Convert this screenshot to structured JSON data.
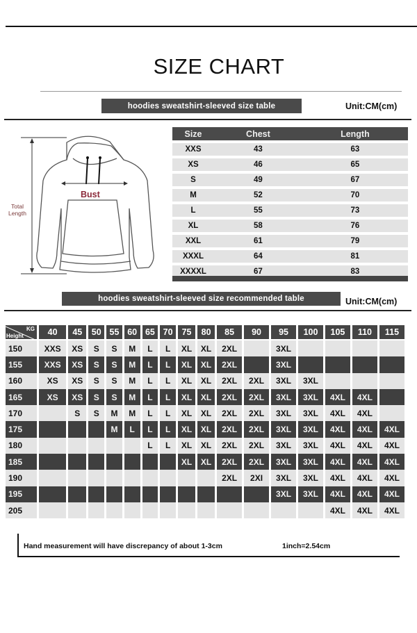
{
  "title": "SIZE CHART",
  "size_table": {
    "banner": "hoodies sweatshirt-sleeved size  table",
    "unit": "Unit:CM(cm)",
    "headers": [
      "Size",
      "Chest",
      "Length"
    ],
    "rows": [
      [
        "XXS",
        "43",
        "63"
      ],
      [
        "XS",
        "46",
        "65"
      ],
      [
        "S",
        "49",
        "67"
      ],
      [
        "M",
        "52",
        "70"
      ],
      [
        "L",
        "55",
        "73"
      ],
      [
        "XL",
        "58",
        "76"
      ],
      [
        "XXL",
        "61",
        "79"
      ],
      [
        "XXXL",
        "64",
        "81"
      ],
      [
        "XXXXL",
        "67",
        "83"
      ]
    ]
  },
  "diagram": {
    "bust_label": "Bust",
    "length_label_1": "Total",
    "length_label_2": "Length",
    "bust_color": "#8b2a3a"
  },
  "recommend_table": {
    "banner": "hoodies sweatshirt-sleeved size recommended table",
    "unit": "Unit:CM(cm)",
    "corner_kg": "KG",
    "corner_height": "Height",
    "weights": [
      "40",
      "45",
      "50",
      "55",
      "60",
      "65",
      "70",
      "75",
      "80",
      "85",
      "90",
      "95",
      "100",
      "105",
      "110",
      "115"
    ],
    "rows": [
      {
        "height": "150",
        "sizes": [
          "XXS",
          "XS",
          "S",
          "S",
          "M",
          "L",
          "L",
          "XL",
          "XL",
          "2XL",
          "",
          "3XL",
          "",
          "",
          "",
          ""
        ]
      },
      {
        "height": "155",
        "sizes": [
          "XXS",
          "XS",
          "S",
          "S",
          "M",
          "L",
          "L",
          "XL",
          "XL",
          "2XL",
          "",
          "3XL",
          "",
          "",
          "",
          ""
        ]
      },
      {
        "height": "160",
        "sizes": [
          "XS",
          "XS",
          "S",
          "S",
          "M",
          "L",
          "L",
          "XL",
          "XL",
          "2XL",
          "2XL",
          "3XL",
          "3XL",
          "",
          "",
          ""
        ]
      },
      {
        "height": "165",
        "sizes": [
          "XS",
          "XS",
          "S",
          "S",
          "M",
          "L",
          "L",
          "XL",
          "XL",
          "2XL",
          "2XL",
          "3XL",
          "3XL",
          "4XL",
          "4XL",
          ""
        ]
      },
      {
        "height": "170",
        "sizes": [
          "",
          "S",
          "S",
          "M",
          "M",
          "L",
          "L",
          "XL",
          "XL",
          "2XL",
          "2XL",
          "3XL",
          "3XL",
          "4XL",
          "4XL",
          ""
        ]
      },
      {
        "height": "175",
        "sizes": [
          "",
          "",
          "",
          "M",
          "L",
          "L",
          "L",
          "XL",
          "XL",
          "2XL",
          "2XL",
          "3XL",
          "3XL",
          "4XL",
          "4XL",
          "4XL"
        ]
      },
      {
        "height": "180",
        "sizes": [
          "",
          "",
          "",
          "",
          "",
          "L",
          "L",
          "XL",
          "XL",
          "2XL",
          "2XL",
          "3XL",
          "3XL",
          "4XL",
          "4XL",
          "4XL"
        ]
      },
      {
        "height": "185",
        "sizes": [
          "",
          "",
          "",
          "",
          "",
          "",
          "",
          "XL",
          "XL",
          "2XL",
          "2XL",
          "3XL",
          "3XL",
          "4XL",
          "4XL",
          "4XL"
        ]
      },
      {
        "height": "190",
        "sizes": [
          "",
          "",
          "",
          "",
          "",
          "",
          "",
          "",
          "",
          "2XL",
          "2XI",
          "3XL",
          "3XL",
          "4XL",
          "4XL",
          "4XL"
        ]
      },
      {
        "height": "195",
        "sizes": [
          "",
          "",
          "",
          "",
          "",
          "",
          "",
          "",
          "",
          "",
          "",
          "3XL",
          "3XL",
          "4XL",
          "4XL",
          "4XL"
        ]
      },
      {
        "height": "205",
        "sizes": [
          "",
          "",
          "",
          "",
          "",
          "",
          "",
          "",
          "",
          "",
          "",
          "",
          "",
          "4XL",
          "4XL",
          "4XL"
        ]
      }
    ]
  },
  "footer": {
    "note": "Hand measurement will have discrepancy of about  1-3cm",
    "conversion": "1inch=2.54cm"
  }
}
